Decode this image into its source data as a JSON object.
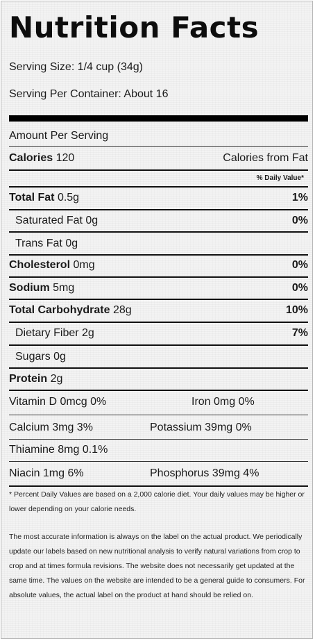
{
  "title": "Nutrition Facts",
  "serving_size": "Serving Size: 1/4 cup (34g)",
  "servings_per_container": "Serving Per Container: About 16",
  "amount_per_serving": "Amount Per Serving",
  "calories": {
    "label": "Calories",
    "value": "120",
    "from_fat_label": "Calories from Fat"
  },
  "dv_header": "% Daily Value*",
  "nutrients": [
    {
      "label": "Total Fat",
      "amount": "0.5g",
      "dv": "1%"
    },
    {
      "label": "Saturated Fat",
      "amount": "0g",
      "dv": "0%"
    },
    {
      "label": "Trans Fat",
      "amount": "0g",
      "dv": ""
    },
    {
      "label": "Cholesterol",
      "amount": "0mg",
      "dv": "0%"
    },
    {
      "label": "Sodium",
      "amount": "5mg",
      "dv": "0%"
    },
    {
      "label": "Total Carbohydrate",
      "amount": "28g",
      "dv": "10%"
    },
    {
      "label": "Dietary Fiber",
      "amount": "2g",
      "dv": "7%"
    },
    {
      "label": "Sugars",
      "amount": "0g",
      "dv": ""
    },
    {
      "label": "Protein",
      "amount": "2g",
      "dv": ""
    }
  ],
  "vitamins": [
    {
      "left": "Vitamin D 0mcg 0%",
      "right": "Iron 0mg 0%"
    },
    {
      "left": "Calcium 3mg 3%",
      "right": "Potassium 39mg 0%"
    },
    {
      "left": "Thiamine 8mg 0.1%",
      "right": ""
    },
    {
      "left": "Niacin 1mg 6%",
      "right": "Phosphorus 39mg 4%"
    }
  ],
  "footnote": "* Percent Daily Values are based on a 2,000 calorie diet. Your daily values may be higher or lower depending on your calorie needs.",
  "disclaimer": "The most accurate information is always on the label on the actual product. We periodically update our labels based on new nutritional analysis to verify natural variations from crop to crop and at times formula revisions. The website does not necessarily get updated at the same time. The values on the website are intended to be a general guide to consumers. For absolute values, the actual label on the product at hand should be relied on."
}
